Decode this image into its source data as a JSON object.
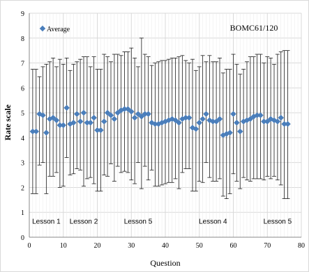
{
  "chart_data": {
    "type": "scatter",
    "title": "",
    "annotation": "BOMC61/120",
    "xlabel": "Question",
    "ylabel": "Rate scale",
    "xlim": [
      0,
      80
    ],
    "ylim": [
      0,
      9
    ],
    "x_ticks": [
      0,
      10,
      20,
      30,
      40,
      50,
      60,
      70,
      80
    ],
    "y_ticks": [
      0,
      1,
      2,
      3,
      4,
      5,
      6,
      7,
      8,
      9
    ],
    "grid": "vertical and horizontal",
    "legend_position": "top-left",
    "marker_color": "#4a7ebb",
    "series": [
      {
        "name": "Average",
        "x": [
          1,
          2,
          3,
          4,
          5,
          6,
          7,
          8,
          9,
          10,
          11,
          12,
          13,
          14,
          15,
          16,
          17,
          18,
          19,
          20,
          21,
          22,
          23,
          24,
          25,
          26,
          27,
          28,
          29,
          30,
          31,
          32,
          33,
          34,
          35,
          36,
          37,
          38,
          39,
          40,
          41,
          42,
          43,
          44,
          45,
          46,
          47,
          48,
          49,
          50,
          51,
          52,
          53,
          54,
          55,
          56,
          57,
          58,
          59,
          60,
          61,
          62,
          63,
          64,
          65,
          66,
          67,
          68,
          69,
          70,
          71,
          72,
          73,
          74,
          75,
          76
        ],
        "y": [
          4.25,
          4.25,
          4.95,
          4.9,
          4.2,
          4.75,
          4.8,
          4.7,
          4.5,
          4.5,
          5.2,
          4.55,
          4.6,
          4.95,
          4.65,
          5.0,
          4.6,
          4.6,
          4.8,
          4.3,
          4.3,
          4.65,
          5.0,
          4.9,
          4.75,
          5.0,
          5.1,
          5.15,
          5.15,
          5.05,
          4.8,
          4.95,
          4.85,
          4.95,
          4.95,
          4.6,
          4.55,
          4.55,
          4.6,
          4.65,
          4.7,
          4.75,
          4.7,
          4.6,
          4.75,
          4.8,
          4.8,
          4.4,
          4.35,
          4.6,
          4.75,
          4.95,
          4.7,
          4.65,
          4.65,
          4.75,
          4.1,
          4.15,
          4.2,
          4.95,
          4.6,
          4.25,
          4.65,
          4.7,
          4.75,
          4.85,
          4.9,
          4.9,
          4.65,
          4.65,
          4.75,
          4.7,
          4.65,
          4.8,
          4.55,
          4.55
        ],
        "error_low": [
          1.75,
          1.75,
          2.9,
          3.0,
          1.75,
          2.45,
          2.45,
          2.6,
          2.0,
          2.05,
          3.2,
          2.5,
          2.55,
          2.75,
          2.7,
          2.05,
          2.35,
          2.4,
          2.15,
          1.85,
          1.85,
          2.5,
          2.45,
          2.95,
          2.25,
          2.85,
          2.6,
          2.65,
          2.6,
          2.3,
          2.15,
          3.0,
          1.95,
          2.85,
          2.3,
          2.7,
          2.05,
          2.05,
          2.1,
          2.15,
          2.2,
          2.2,
          2.35,
          1.95,
          2.6,
          2.75,
          2.75,
          1.85,
          1.85,
          2.25,
          2.2,
          3.0,
          2.4,
          2.25,
          2.25,
          2.35,
          1.65,
          1.55,
          1.75,
          2.55,
          2.25,
          1.95,
          2.4,
          2.3,
          2.25,
          2.35,
          2.35,
          2.35,
          2.3,
          2.45,
          2.35,
          2.45,
          2.3,
          2.1,
          1.55,
          1.55
        ],
        "error_high": [
          6.75,
          6.75,
          6.45,
          6.85,
          6.95,
          7.05,
          7.2,
          6.85,
          7.15,
          6.95,
          7.2,
          6.7,
          6.95,
          7.05,
          7.15,
          7.25,
          7.25,
          6.85,
          7.25,
          6.75,
          6.75,
          7.35,
          7.25,
          7.05,
          7.35,
          7.35,
          7.3,
          7.45,
          7.45,
          7.6,
          7.2,
          6.85,
          8.0,
          7.35,
          7.25,
          6.9,
          7.0,
          7.05,
          7.1,
          7.1,
          7.15,
          7.2,
          7.2,
          7.25,
          7.3,
          7.1,
          7.0,
          7.15,
          6.7,
          6.85,
          7.3,
          7.05,
          7.3,
          7.05,
          7.05,
          7.2,
          6.6,
          6.75,
          6.75,
          7.35,
          6.95,
          6.55,
          6.75,
          7.05,
          7.25,
          7.25,
          7.35,
          7.35,
          7.0,
          7.25,
          7.2,
          6.95,
          7.35,
          7.45,
          7.5,
          7.5
        ]
      }
    ],
    "lesson_labels": [
      {
        "text": "Lesson 1",
        "x": 5
      },
      {
        "text": "Lesson 2",
        "x": 16
      },
      {
        "text": "Lesson 5",
        "x": 32
      },
      {
        "text": "Lesson 4",
        "x": 54
      },
      {
        "text": "Lesson 5",
        "x": 73
      }
    ],
    "lesson_labels_y": 0.55
  }
}
